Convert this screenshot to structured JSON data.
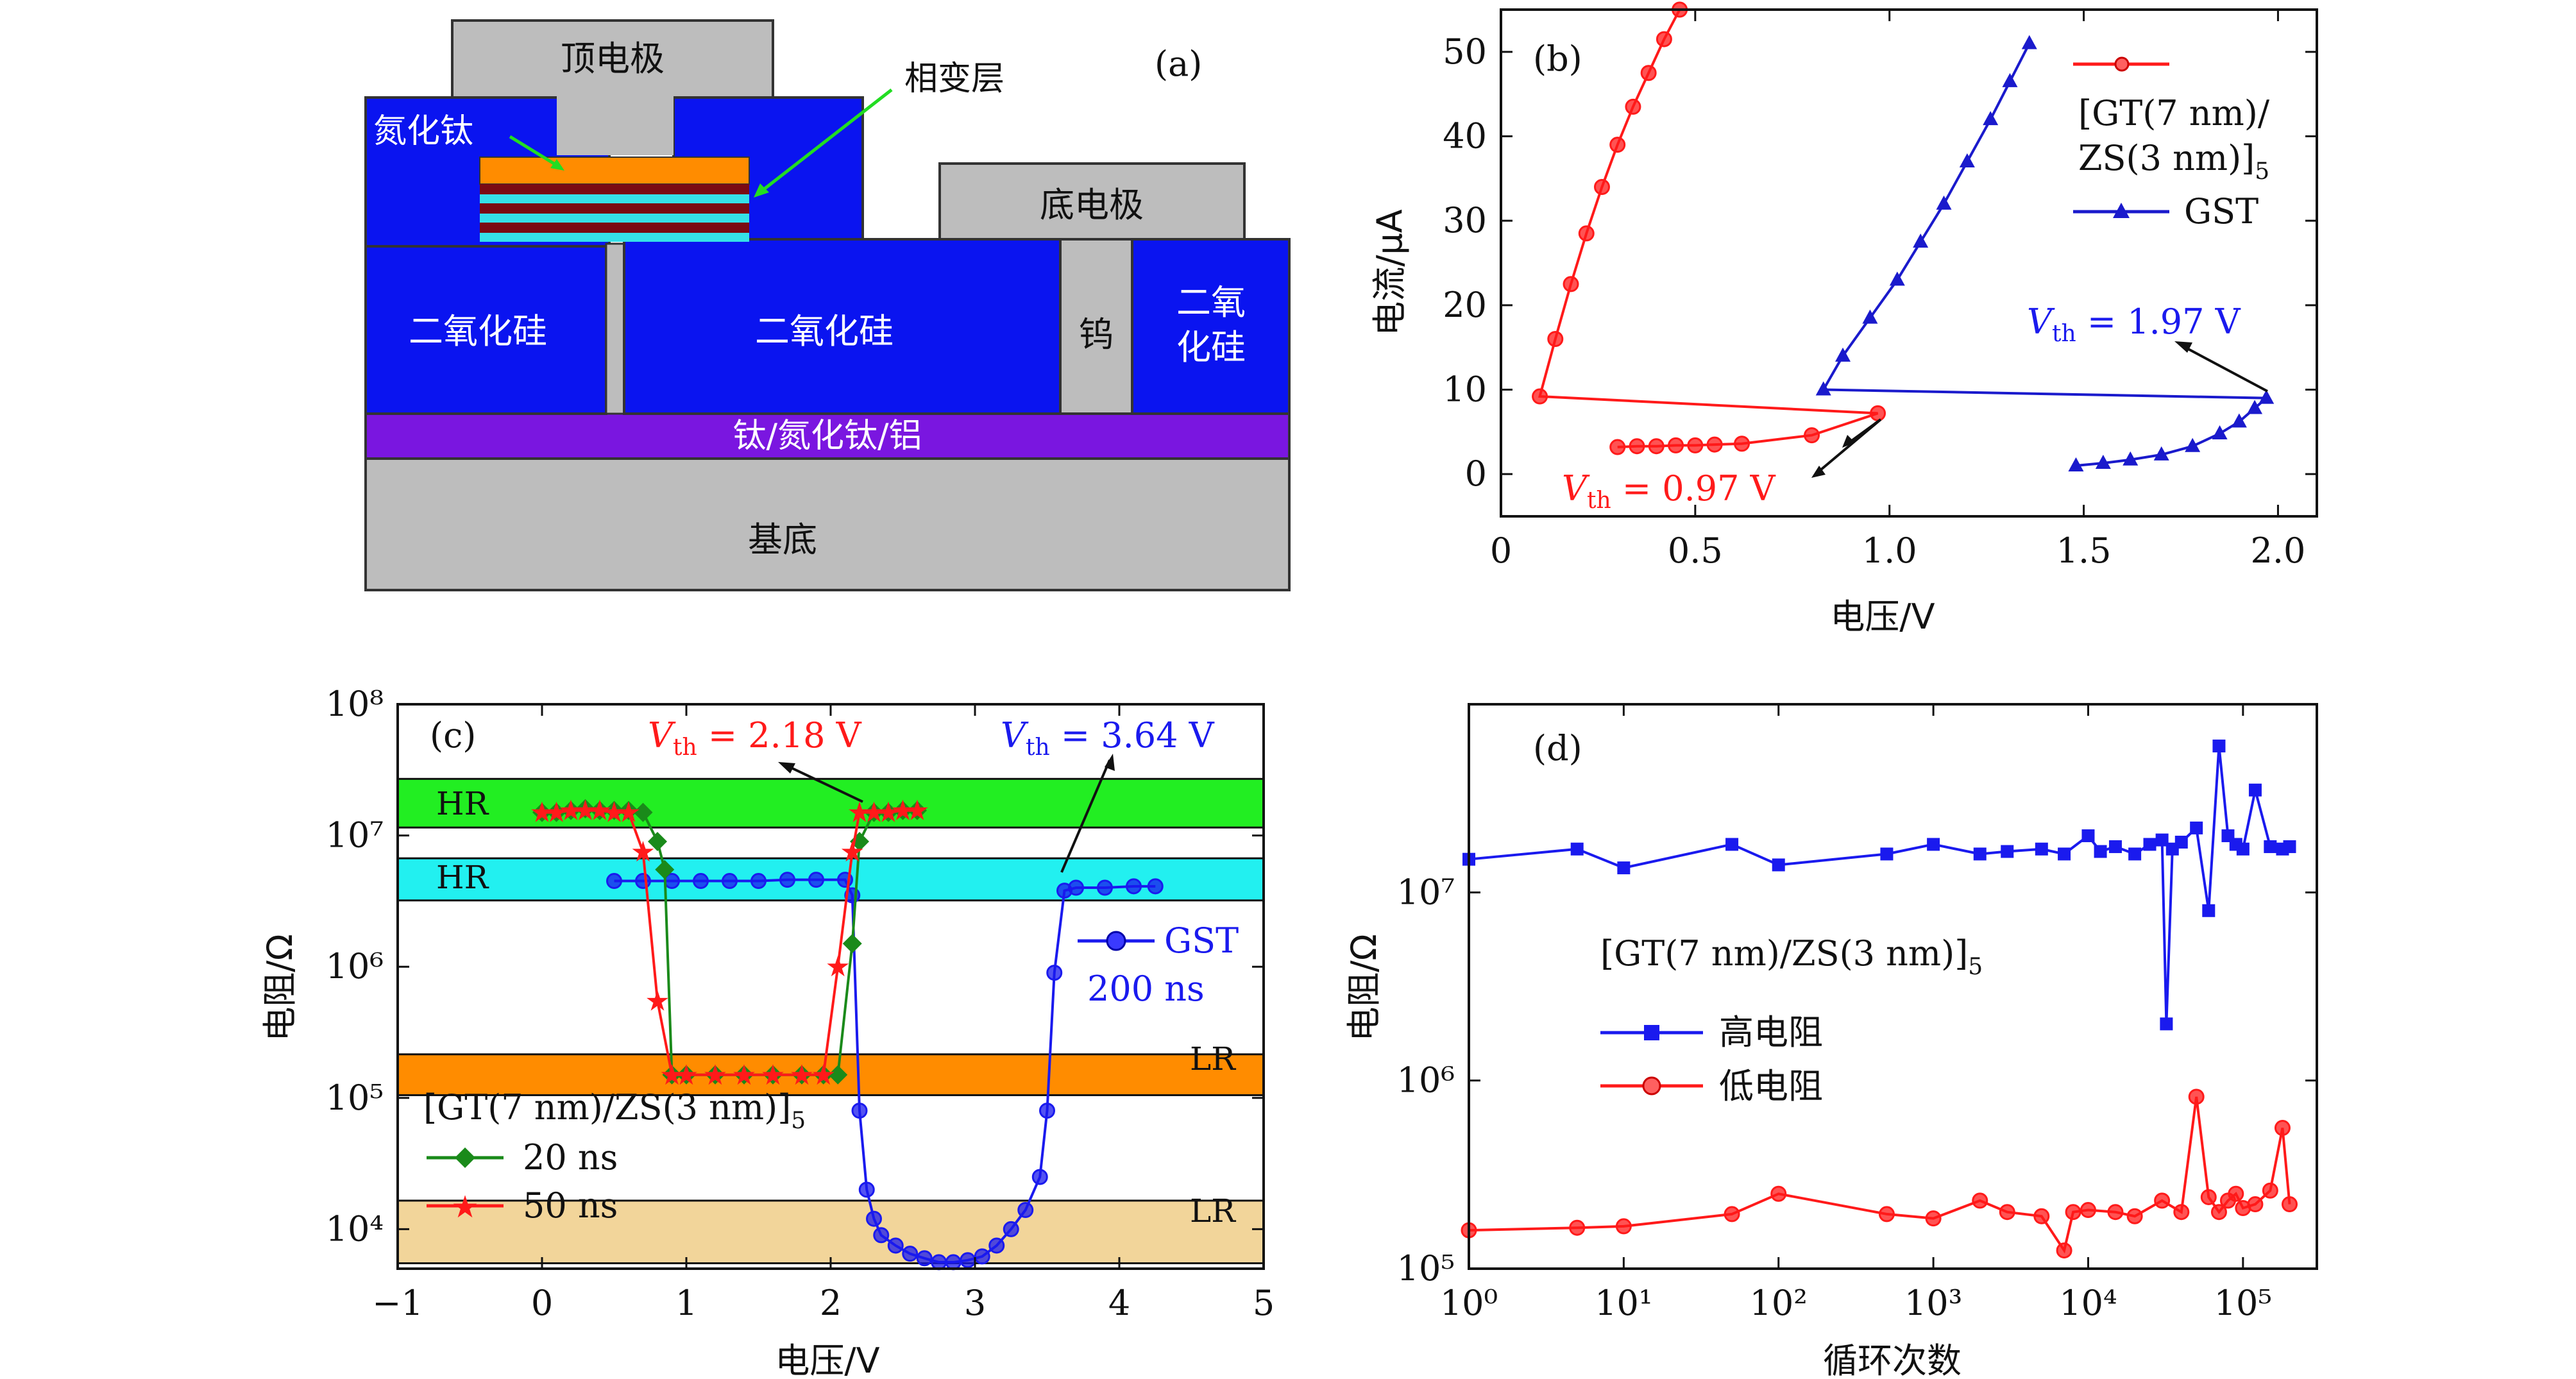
{
  "panels": {
    "a": {
      "tag": "(a)",
      "labels": {
        "top_electrode": "顶电极",
        "phase_change_layer": "相变层",
        "tin": "氮化钛",
        "bottom_electrode": "底电极",
        "sio2": "二氧化硅",
        "sio2_right_1": "二氧",
        "sio2_right_2": "化硅",
        "tungsten": "钨",
        "ti_tin_al": "钛/氮化钛/铝",
        "substrate": "基底"
      },
      "colors": {
        "dielectric": "#0a14f0",
        "metal": "#bdbdbd",
        "phase_orange": "#ff8c00",
        "phase_dark": "#7a0a14",
        "phase_cyan": "#35e0e8",
        "interconnect": "#7a16e0",
        "arrow": "#22dd22"
      }
    },
    "b": {
      "tag": "(b)",
      "xlabel": "电压/V",
      "ylabel": "电流/μA",
      "legend": {
        "series1_line1": "[GT(7 nm)/",
        "series1_line2": "ZS(3 nm)]",
        "series1_sub": "5",
        "series2": "GST"
      },
      "annotations": {
        "gst_vth_pre": "V",
        "gst_vth_sub": "th",
        "gst_vth_val": " = 1.97 V",
        "gt_vth_pre": "V",
        "gt_vth_sub": "th",
        "gt_vth_val": " = 0.97 V"
      }
    },
    "c": {
      "tag": "(c)",
      "xlabel": "电压/V",
      "ylabel": "电阻/Ω",
      "bands": {
        "hr": "HR",
        "lr": "LR"
      },
      "legend": {
        "gst": "GST",
        "gst_pulse": "200 ns",
        "gt_label": "[GT(7 nm)/ZS(3 nm)]",
        "gt_sub": "5",
        "gt_20": "20 ns",
        "gt_50": "50 ns"
      },
      "annotations": {
        "vth1_pre": "V",
        "vth1_sub": "th",
        "vth1_val": " = 2.18 V",
        "vth2_pre": "V",
        "vth2_sub": "th",
        "vth2_val": " = 3.64 V"
      }
    },
    "d": {
      "tag": "(d)",
      "xlabel": "循环次数",
      "ylabel": "电阻/Ω",
      "legend": {
        "title": "[GT(7 nm)/ZS(3 nm)]",
        "title_sub": "5",
        "high": "高电阻",
        "low": "低电阻"
      }
    }
  },
  "chart_data": [
    {
      "panel": "b",
      "type": "line",
      "xlabel": "电压/V",
      "ylabel": "电流/μA",
      "xlim": [
        0,
        2.1
      ],
      "ylim": [
        -5,
        55
      ],
      "xticks": [
        0,
        0.5,
        1.0,
        1.5,
        2.0
      ],
      "xtick_labels": [
        "0",
        "0.5",
        "1.0",
        "1.5",
        "2.0"
      ],
      "yticks": [
        0,
        10,
        20,
        30,
        40,
        50
      ],
      "ytick_labels": [
        "0",
        "10",
        "20",
        "30",
        "40",
        "50"
      ],
      "series": [
        {
          "name": "[GT(7 nm)/ZS(3 nm)]5",
          "color": "#ff1a1a",
          "marker": "circle",
          "x": [
            0.3,
            0.35,
            0.4,
            0.45,
            0.5,
            0.55,
            0.62,
            0.8,
            0.97,
            0.1,
            0.14,
            0.18,
            0.22,
            0.26,
            0.3,
            0.34,
            0.38,
            0.42,
            0.46
          ],
          "y": [
            3.2,
            3.3,
            3.3,
            3.4,
            3.4,
            3.5,
            3.6,
            4.6,
            7.2,
            9.2,
            16.0,
            22.5,
            28.5,
            34.0,
            39.0,
            43.5,
            47.5,
            51.5,
            55.0
          ]
        },
        {
          "name": "GST",
          "color": "#1a1acc",
          "marker": "triangle",
          "x": [
            1.48,
            1.55,
            1.62,
            1.7,
            1.78,
            1.85,
            1.9,
            1.94,
            1.97,
            0.83,
            0.88,
            0.95,
            1.02,
            1.08,
            1.14,
            1.2,
            1.26,
            1.31,
            1.36
          ],
          "y": [
            1.0,
            1.3,
            1.7,
            2.3,
            3.3,
            4.8,
            6.2,
            7.8,
            9.0,
            10.0,
            14.0,
            18.5,
            23.0,
            27.5,
            32.0,
            37.0,
            42.0,
            46.5,
            51.0
          ]
        }
      ]
    },
    {
      "panel": "c",
      "type": "line",
      "xlabel": "电压/V",
      "ylabel": "电阻/Ω",
      "yscale": "log",
      "xlim": [
        -1,
        5
      ],
      "ylim": [
        5000,
        100000000
      ],
      "xticks": [
        -1,
        0,
        1,
        2,
        3,
        4,
        5
      ],
      "xtick_labels": [
        "−1",
        "0",
        "1",
        "2",
        "3",
        "4",
        "5"
      ],
      "yticks": [
        10000,
        100000,
        1000000,
        10000000,
        100000000
      ],
      "ytick_labels": [
        "10⁴",
        "10⁵",
        "10⁶",
        "10⁷",
        "10⁸"
      ],
      "bands": [
        {
          "label": "HR",
          "from": 11500000,
          "to": 27000000,
          "color": "#22ee22"
        },
        {
          "label": "HR",
          "from": 3200000,
          "to": 6700000,
          "color": "#22f0f0"
        },
        {
          "label": "LR",
          "from": 105000,
          "to": 215000,
          "color": "#ff8c00"
        },
        {
          "label": "LR",
          "from": 5500,
          "to": 16500,
          "color": "#f2d59a"
        }
      ],
      "series": [
        {
          "name": "GST 200 ns",
          "color": "#1a1aee",
          "marker": "circle",
          "x": [
            0.5,
            0.7,
            0.9,
            1.1,
            1.3,
            1.5,
            1.7,
            1.9,
            2.1,
            2.15,
            2.2,
            2.25,
            2.3,
            2.35,
            2.45,
            2.55,
            2.65,
            2.75,
            2.85,
            2.95,
            3.05,
            3.15,
            3.25,
            3.35,
            3.45,
            3.5,
            3.55,
            3.62,
            3.7,
            3.9,
            4.1,
            4.25
          ],
          "y": [
            4500000,
            4500000,
            4500000,
            4500000,
            4500000,
            4500000,
            4600000,
            4600000,
            4600000,
            3500000,
            80000,
            20000,
            12000,
            9000,
            7500,
            6500,
            6000,
            5600,
            5600,
            5800,
            6200,
            7500,
            10000,
            14000,
            25000,
            80000,
            900000,
            3800000,
            4000000,
            4000000,
            4100000,
            4100000
          ]
        },
        {
          "name": "20 ns",
          "color": "#1a8a1a",
          "marker": "diamond",
          "x": [
            0.0,
            0.1,
            0.2,
            0.3,
            0.4,
            0.5,
            0.6,
            0.7,
            0.8,
            0.85,
            0.9,
            1.0,
            1.2,
            1.4,
            1.6,
            1.8,
            1.95,
            2.05,
            2.15,
            2.2,
            2.3,
            2.4,
            2.5,
            2.6
          ],
          "y": [
            15000000,
            15000000,
            15500000,
            16000000,
            15500000,
            15500000,
            15500000,
            15000000,
            9000000,
            5500000,
            150000,
            150000,
            150000,
            150000,
            150000,
            150000,
            150000,
            150000,
            1500000,
            9000000,
            15000000,
            15000000,
            15500000,
            15500000
          ]
        },
        {
          "name": "50 ns",
          "color": "#ff1a1a",
          "marker": "star",
          "x": [
            0.0,
            0.1,
            0.2,
            0.3,
            0.4,
            0.5,
            0.6,
            0.7,
            0.8,
            0.9,
            1.0,
            1.2,
            1.4,
            1.6,
            1.8,
            1.95,
            2.05,
            2.15,
            2.2,
            2.3,
            2.4,
            2.5,
            2.6
          ],
          "y": [
            15000000,
            15000000,
            15500000,
            15500000,
            15500000,
            15000000,
            15000000,
            7500000,
            550000,
            150000,
            150000,
            150000,
            150000,
            150000,
            150000,
            150000,
            1000000,
            7500000,
            15000000,
            15000000,
            15000000,
            15500000,
            15500000
          ]
        }
      ]
    },
    {
      "panel": "d",
      "type": "line",
      "xlabel": "循环次数",
      "ylabel": "电阻/Ω",
      "xscale": "log",
      "yscale": "log",
      "xlim": [
        1,
        300000
      ],
      "ylim": [
        100000,
        100000000
      ],
      "xticks": [
        1,
        10,
        100,
        1000,
        10000,
        100000
      ],
      "xtick_labels": [
        "10⁰",
        "10¹",
        "10²",
        "10³",
        "10⁴",
        "10⁵"
      ],
      "yticks": [
        100000,
        1000000,
        10000000
      ],
      "ytick_labels": [
        "10⁵",
        "10⁶",
        "10⁷"
      ],
      "series": [
        {
          "name": "高电阻",
          "color": "#1a1aee",
          "marker": "square",
          "x": [
            1,
            5,
            10,
            50,
            100,
            500,
            1000,
            2000,
            3000,
            5000,
            7000,
            10000,
            12000,
            15000,
            20000,
            25000,
            30000,
            32000,
            35000,
            40000,
            50000,
            60000,
            70000,
            80000,
            90000,
            100000,
            120000,
            150000,
            180000,
            200000
          ],
          "y": [
            15000000,
            17000000,
            13500000,
            18000000,
            14000000,
            16000000,
            18000000,
            16000000,
            16500000,
            17000000,
            16000000,
            20000000,
            16500000,
            17500000,
            16000000,
            18000000,
            19000000,
            2000000,
            17000000,
            18500000,
            22000000,
            8000000,
            60000000,
            20000000,
            18000000,
            17000000,
            35000000,
            17500000,
            17000000,
            17500000
          ]
        },
        {
          "name": "低电阻",
          "color": "#ff1a1a",
          "marker": "circle",
          "x": [
            1,
            5,
            10,
            50,
            100,
            500,
            1000,
            2000,
            3000,
            5000,
            7000,
            8000,
            10000,
            15000,
            20000,
            30000,
            40000,
            50000,
            60000,
            70000,
            80000,
            90000,
            100000,
            120000,
            150000,
            180000,
            200000
          ],
          "y": [
            160000,
            165000,
            168000,
            195000,
            250000,
            195000,
            185000,
            230000,
            200000,
            190000,
            125000,
            200000,
            205000,
            200000,
            190000,
            230000,
            200000,
            820000,
            240000,
            200000,
            230000,
            250000,
            210000,
            220000,
            260000,
            560000,
            220000
          ]
        }
      ]
    }
  ]
}
